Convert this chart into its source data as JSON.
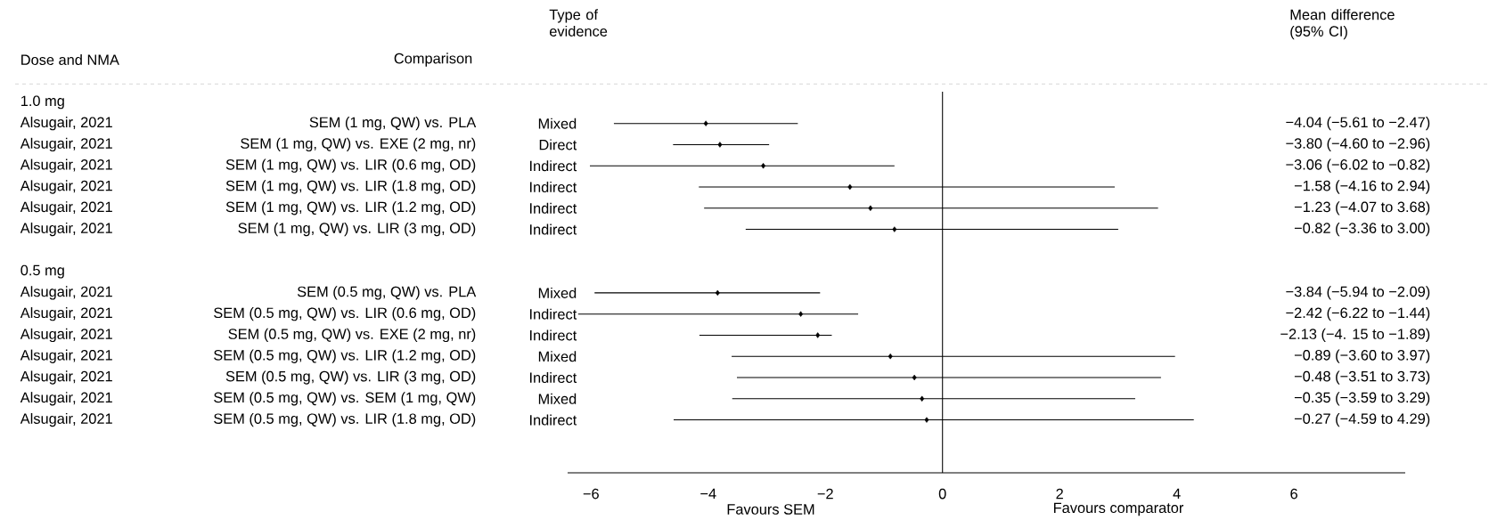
{
  "chart_data": {
    "type": "scatter",
    "categories": [
      null,
      "SEM (1 mg, QW) vs. PLA",
      "SEM (1 mg, QW) vs. EXE (2 mg, nr)",
      "SEM (1 mg, QW) vs. LIR (0.6 mg, OD)",
      "SEM (1 mg, QW) vs. LIR (1.8 mg, OD)",
      "SEM (1 mg, QW) vs. LIR (1.2 mg, OD)",
      "SEM (1 mg, QW) vs. LIR (3 mg, OD)",
      null,
      null,
      "SEM (0.5 mg, QW) vs. PLA",
      "SEM (0.5 mg, QW) vs. LIR (0.6 mg, OD)",
      "SEM (0.5 mg, QW) vs. EXE (2 mg, nr)",
      "SEM (0.5 mg, QW) vs. LIR (1.2 mg, OD)",
      "SEM (0.5 mg, QW) vs. LIR (3 mg, OD)",
      "SEM (0.5 mg, QW) vs. SEM (1 mg, QW)",
      "SEM (0.5 mg, QW) vs. LIR (1.8 mg, OD)",
      null,
      null
    ],
    "values": [
      null,
      -4.04,
      -3.8,
      -3.06,
      -1.58,
      -1.23,
      -0.82,
      null,
      null,
      -3.84,
      -2.42,
      -2.13,
      -0.89,
      -0.48,
      -0.35,
      -0.27,
      null,
      null
    ],
    "errors": [
      null,
      [
        -5.61,
        -2.47
      ],
      [
        -4.6,
        -2.96
      ],
      [
        -6.02,
        -0.82
      ],
      [
        -4.16,
        2.94
      ],
      [
        -4.07,
        3.68
      ],
      [
        -3.36,
        3.0
      ],
      null,
      null,
      [
        -5.94,
        -2.09
      ],
      [
        -6.22,
        -1.44
      ],
      [
        -4.15,
        -1.89
      ],
      [
        -3.6,
        3.97
      ],
      [
        -3.51,
        3.73
      ],
      [
        -3.59,
        3.29
      ],
      [
        -4.59,
        4.29
      ],
      null,
      null
    ],
    "color": "#000000",
    "marker": "diamond",
    "orientation": "horizontal",
    "xlim": [
      -6.4,
      7.9
    ],
    "xticks": [
      {
        "value": -6,
        "label": "−6"
      },
      {
        "value": -4,
        "label": "−4"
      },
      {
        "value": -2,
        "label": "−2"
      },
      {
        "value": 0,
        "label": "0"
      },
      {
        "value": 2,
        "label": "2"
      },
      {
        "value": 4,
        "label": "4"
      },
      {
        "value": 6,
        "label": "6"
      }
    ],
    "ref_lines": [
      {
        "axis": "x",
        "value": 0
      }
    ],
    "annotations": [
      "Dose and NMA",
      "Comparison",
      "Type of evidence",
      "Mean difference (95% CI)",
      "1.0 mg",
      "0.5 mg",
      "Alsugair, 2021",
      "Alsugair, 2021",
      "Alsugair, 2021",
      "Alsugair, 2021",
      "Alsugair, 2021",
      "Alsugair, 2021",
      "Alsugair, 2021",
      "Alsugair, 2021",
      "Alsugair, 2021",
      "Alsugair, 2021",
      "Alsugair, 2021",
      "Alsugair, 2021",
      "Alsugair, 2021",
      "Mixed",
      "Direct",
      "Indirect",
      "Indirect",
      "Indirect",
      "Indirect",
      "Mixed",
      "Indirect",
      "Indirect",
      "Mixed",
      "Indirect",
      "Mixed",
      "Indirect",
      "Favours SEM",
      "Favours comparator",
      "−4.04 (−5.61 to −2.47)",
      "−3.80 (−4.60 to −2.96)",
      "−3.06 (−6.02 to −0.82)",
      "−1.58 (−4.16 to 2.94)",
      "−1.23 (−4.07 to 3.68)",
      "−0.82 (−3.36 to 3.00)",
      "−3.84 (−5.94 to −2.09)",
      "−2.42 (−6.22 to −1.44)",
      "−2.13 (−4. 15 to −1.89)",
      "−0.89 (−3.60 to 3.97)",
      "−0.48 (−3.51 to 3.73)",
      "−0.35 (−3.59 to 3.29)",
      "−0.27 (−4.59 to 4.29)"
    ]
  }
}
